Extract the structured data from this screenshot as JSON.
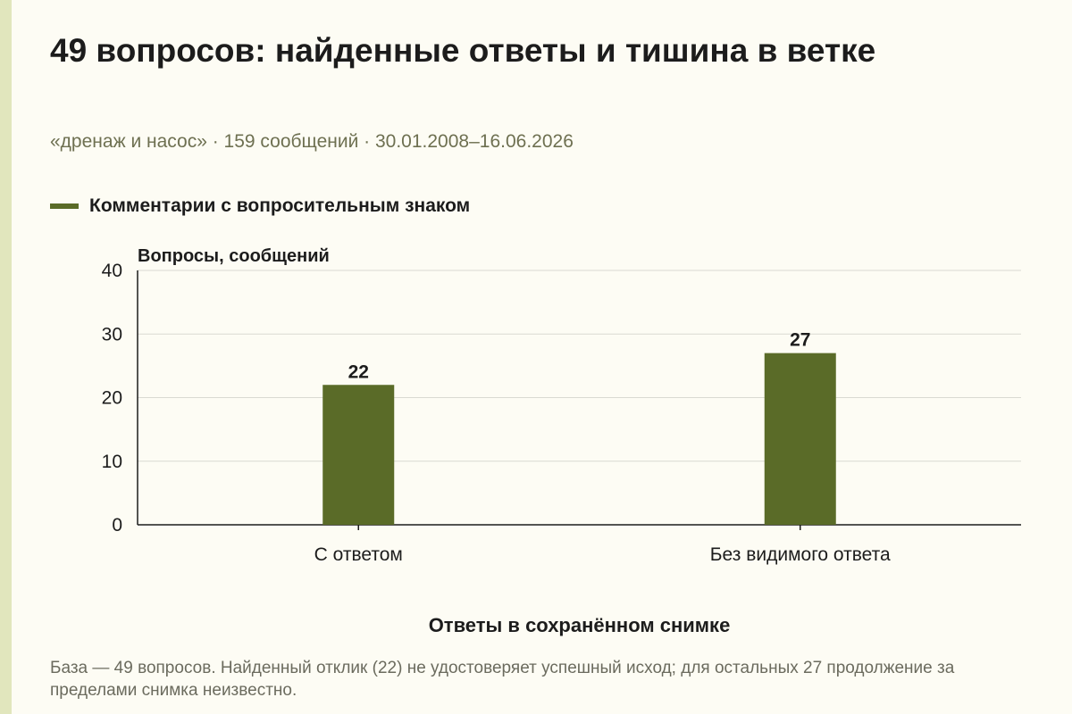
{
  "header": {
    "title": "49 вопросов: найденные ответы и тишина в ветке",
    "subtitle": "«дренаж и насос» · 159 сообщений · 30.01.2008–16.06.2026"
  },
  "legend": {
    "label": "Комментарии с вопросительным знаком",
    "color": "#5a6b28"
  },
  "footnote": "База — 49 вопросов. Найденный отклик (22) не удостоверяет успешный исход; для остальных 27 продолжение за пределами снимка неизвестно.",
  "colors": {
    "background": "#fdfcf4",
    "accent_strip": "#e1e6bd",
    "bar": "#5a6b28",
    "grid": "#d9d9d2",
    "axis": "#1c1c1c"
  },
  "chart_data": {
    "type": "bar",
    "categories": [
      "С ответом",
      "Без видимого ответа"
    ],
    "series": [
      {
        "name": "Комментарии с вопросительным знаком",
        "values": [
          22,
          27
        ]
      }
    ],
    "data_labels": [
      "22",
      "27"
    ],
    "ylabel": "Вопросы, сообщений",
    "xlabel": "Ответы в сохранённом снимке",
    "ylim": [
      0,
      40
    ],
    "yticks": [
      0,
      10,
      20,
      30,
      40
    ],
    "grid": true,
    "legend_position": "top-left"
  }
}
